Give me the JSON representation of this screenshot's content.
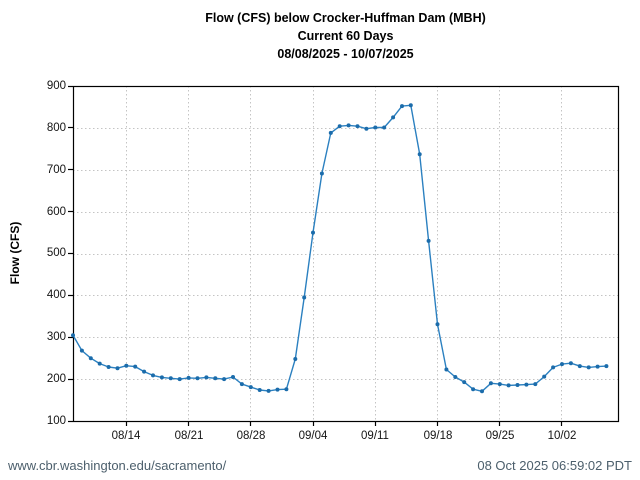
{
  "title": {
    "line1": "Flow (CFS) below Crocker-Huffman Dam (MBH)",
    "line2": "Current 60 Days",
    "line3": "08/08/2025 - 10/07/2025"
  },
  "chart_data": {
    "type": "line",
    "title": "Flow (CFS) below Crocker-Huffman Dam (MBH)",
    "subtitle": "Current 60 Days",
    "date_range_label": "08/08/2025 - 10/07/2025",
    "ylabel": "Flow (CFS)",
    "ylim": [
      100,
      900
    ],
    "ytick_step": 100,
    "y_tick_labels": [
      "900",
      "800",
      "700",
      "600",
      "500",
      "400",
      "300",
      "200",
      "100"
    ],
    "x_tick_labels": [
      "08/14",
      "08/21",
      "08/28",
      "09/04",
      "09/11",
      "09/18",
      "09/25",
      "10/02"
    ],
    "x_tick_days": [
      6,
      13,
      20,
      27,
      34,
      41,
      48,
      55
    ],
    "x_domain_days": [
      0,
      61.3
    ],
    "grid": true,
    "legend": "none",
    "line_color": "#2b80c0",
    "marker_color": "#1b6cab",
    "grid_color": "#c4c4c4",
    "axis_color": "#000000",
    "x": [
      "08/08",
      "08/09",
      "08/10",
      "08/11",
      "08/12",
      "08/13",
      "08/14",
      "08/15",
      "08/16",
      "08/17",
      "08/18",
      "08/19",
      "08/20",
      "08/21",
      "08/22",
      "08/23",
      "08/24",
      "08/25",
      "08/26",
      "08/27",
      "08/28",
      "08/29",
      "08/30",
      "08/31",
      "09/01",
      "09/02",
      "09/03",
      "09/04",
      "09/05",
      "09/06",
      "09/07",
      "09/08",
      "09/09",
      "09/10",
      "09/11",
      "09/12",
      "09/13",
      "09/14",
      "09/15",
      "09/16",
      "09/17",
      "09/18",
      "09/19",
      "09/20",
      "09/21",
      "09/22",
      "09/23",
      "09/24",
      "09/25",
      "09/26",
      "09/27",
      "09/28",
      "09/29",
      "09/30",
      "10/01",
      "10/02",
      "10/03",
      "10/04",
      "10/05",
      "10/06",
      "10/07"
    ],
    "values": [
      305,
      268,
      250,
      237,
      229,
      226,
      232,
      230,
      218,
      209,
      204,
      202,
      200,
      203,
      202,
      204,
      202,
      200,
      205,
      188,
      181,
      174,
      172,
      175,
      176,
      248,
      395,
      550,
      691,
      788,
      804,
      806,
      804,
      798,
      801,
      801,
      825,
      852,
      854,
      737,
      530,
      331,
      223,
      205,
      193,
      176,
      171,
      190,
      188,
      185,
      186,
      187,
      188,
      206,
      228,
      236,
      238,
      231,
      228,
      230,
      231
    ]
  },
  "footer": {
    "left": "www.cbr.washington.edu/sacramento/",
    "right": "08 Oct 2025 06:59:02 PDT"
  }
}
